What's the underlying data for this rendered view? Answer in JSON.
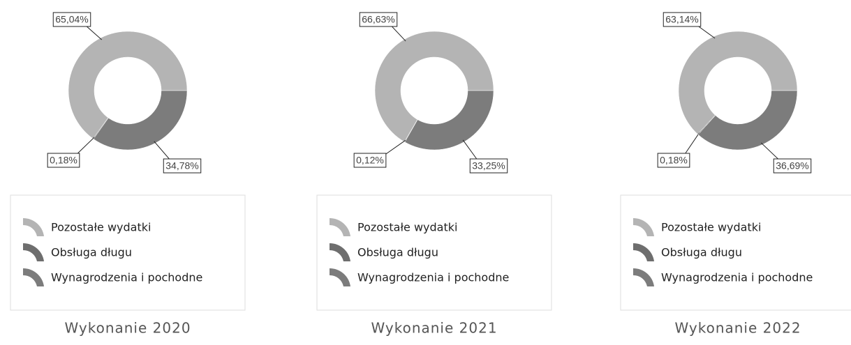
{
  "chart_data": [
    {
      "type": "donut",
      "title": "Wykonanie 2020",
      "categories": [
        "Pozostałe wydatki",
        "Obsługa długu",
        "Wynagrodzenia i pochodne"
      ],
      "values": [
        65.04,
        0.18,
        34.78
      ],
      "value_labels": [
        "65,04%",
        "0,18%",
        "34,78%"
      ],
      "colors": [
        "#b4b4b4",
        "#6e6e6e",
        "#7c7c7c"
      ]
    },
    {
      "type": "donut",
      "title": "Wykonanie 2021",
      "categories": [
        "Pozostałe wydatki",
        "Obsługa długu",
        "Wynagrodzenia i pochodne"
      ],
      "values": [
        66.63,
        0.12,
        33.25
      ],
      "value_labels": [
        "66,63%",
        "0,12%",
        "33,25%"
      ],
      "colors": [
        "#b4b4b4",
        "#6e6e6e",
        "#7c7c7c"
      ]
    },
    {
      "type": "donut",
      "title": "Wykonanie 2022",
      "categories": [
        "Pozostałe wydatki",
        "Obsługa długu",
        "Wynagrodzenia i pochodne"
      ],
      "values": [
        63.14,
        0.18,
        36.69
      ],
      "value_labels": [
        "63,14%",
        "0,18%",
        "36,69%"
      ],
      "colors": [
        "#b4b4b4",
        "#6e6e6e",
        "#7c7c7c"
      ]
    }
  ]
}
